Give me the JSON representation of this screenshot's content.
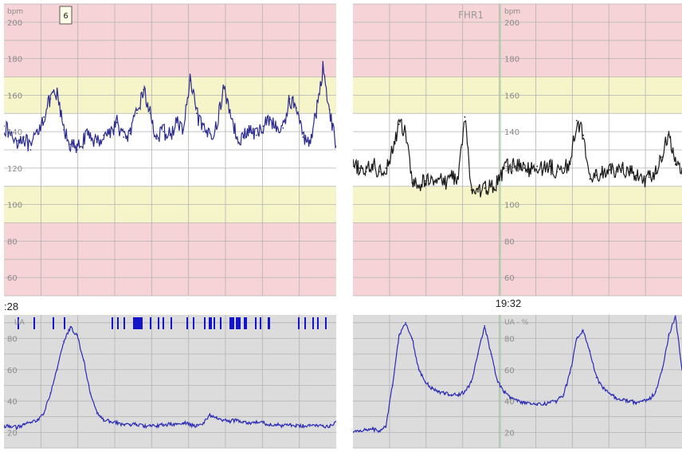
{
  "colors": {
    "red_zone": "#f6d3d6",
    "yellow_zone": "#f6f5c9",
    "white_zone": "#ffffff",
    "ua_background": "#dcdcdc",
    "grid": "#b3b3b3",
    "left_trace": "#2b2b8f",
    "right_trace": "#1a1a1a",
    "ua_trace": "#2b2bb5",
    "event_marks": "#1414c8"
  },
  "marker_box_label": "6",
  "chart_data": [
    {
      "type": "line",
      "panel": "left-fhr",
      "title": "",
      "ylabel": "bpm",
      "yticks": [
        60,
        80,
        100,
        120,
        140,
        160,
        180,
        200
      ],
      "ylim": [
        50,
        210
      ],
      "zones": {
        "red": [
          [
            170,
            210
          ],
          [
            50,
            90
          ]
        ],
        "yellow": [
          [
            150,
            170
          ],
          [
            90,
            110
          ]
        ],
        "white": [
          [
            110,
            150
          ]
        ]
      },
      "x": [
        0,
        2,
        4,
        6,
        8,
        10,
        12,
        14,
        16,
        18,
        20,
        22,
        24,
        26,
        28,
        30,
        32,
        34,
        36,
        38,
        40,
        42,
        44,
        46,
        48,
        50,
        52,
        54,
        56,
        58,
        60,
        62,
        64,
        66,
        68,
        70,
        72,
        74,
        76,
        78,
        80,
        82,
        84,
        86,
        88,
        90,
        92,
        94,
        96,
        98,
        100
      ],
      "series": [
        {
          "values": [
            143,
            138,
            135,
            137,
            130,
            140,
            148,
            158,
            160,
            141,
            133,
            130,
            136,
            138,
            134,
            138,
            140,
            145,
            137,
            139,
            150,
            163,
            150,
            136,
            140,
            138,
            145,
            141,
            168,
            150,
            140,
            139,
            142,
            164,
            152,
            137,
            137,
            141,
            138,
            143,
            148,
            141,
            142,
            158,
            153,
            137,
            135,
            150,
            175,
            152,
            132
          ]
        }
      ]
    },
    {
      "type": "line",
      "panel": "right-fhr",
      "title": "FHR1",
      "ylabel": "bpm",
      "yticks": [
        60,
        80,
        100,
        120,
        140,
        160,
        180,
        200
      ],
      "ylim": [
        50,
        210
      ],
      "zones": {
        "red": [
          [
            170,
            210
          ],
          [
            50,
            90
          ]
        ],
        "yellow": [
          [
            150,
            170
          ],
          [
            90,
            110
          ]
        ],
        "white": [
          [
            110,
            150
          ]
        ]
      },
      "x": [
        0,
        2,
        4,
        6,
        8,
        10,
        12,
        14,
        16,
        18,
        20,
        22,
        24,
        26,
        28,
        30,
        32,
        34,
        36,
        38,
        40,
        42,
        44,
        46,
        48,
        50,
        52,
        54,
        56,
        58,
        60,
        62,
        64,
        66,
        68,
        70,
        72,
        74,
        76,
        78,
        80,
        82,
        84,
        86,
        88,
        90,
        92,
        94,
        96,
        98,
        100
      ],
      "series": [
        {
          "values": [
            121,
            120,
            118,
            122,
            118,
            120,
            130,
            144,
            140,
            112,
            110,
            113,
            115,
            114,
            112,
            116,
            114,
            148,
            108,
            107,
            109,
            110,
            112,
            120,
            121,
            122,
            120,
            119,
            121,
            120,
            121,
            118,
            120,
            122,
            146,
            138,
            114,
            116,
            117,
            119,
            118,
            120,
            118,
            116,
            113,
            115,
            117,
            126,
            140,
            122,
            120
          ]
        }
      ]
    },
    {
      "type": "line",
      "panel": "left-ua",
      "title": "",
      "ylabel": "UA",
      "yticks": [
        20,
        40,
        60,
        80
      ],
      "ylim": [
        10,
        95
      ],
      "time_label": ":28",
      "x": [
        0,
        2,
        4,
        6,
        8,
        10,
        12,
        14,
        16,
        18,
        20,
        22,
        24,
        26,
        28,
        30,
        32,
        34,
        36,
        38,
        40,
        42,
        44,
        46,
        48,
        50,
        52,
        54,
        56,
        58,
        60,
        62,
        64,
        66,
        68,
        70,
        72,
        74,
        76,
        78,
        80,
        82,
        84,
        86,
        88,
        90,
        92,
        94,
        96,
        98,
        100
      ],
      "series": [
        {
          "values": [
            24,
            24,
            23,
            25,
            26,
            28,
            32,
            45,
            60,
            78,
            87,
            82,
            66,
            45,
            32,
            28,
            27,
            26,
            25,
            25,
            25,
            24,
            24,
            24,
            25,
            25,
            25,
            26,
            25,
            24,
            26,
            31,
            29,
            28,
            27,
            28,
            27,
            26,
            27,
            26,
            25,
            25,
            24,
            25,
            24,
            24,
            24,
            25,
            24,
            24,
            27
          ]
        }
      ]
    },
    {
      "type": "line",
      "panel": "right-ua",
      "title": "",
      "ylabel": "UA - %",
      "yticks": [
        20,
        40,
        60,
        80
      ],
      "ylim": [
        10,
        95
      ],
      "time_label": "19:32",
      "x": [
        0,
        2,
        4,
        6,
        8,
        10,
        12,
        14,
        16,
        18,
        20,
        22,
        24,
        26,
        28,
        30,
        32,
        34,
        36,
        38,
        40,
        42,
        44,
        46,
        48,
        50,
        52,
        54,
        56,
        58,
        60,
        62,
        64,
        66,
        68,
        70,
        72,
        74,
        76,
        78,
        80,
        82,
        84,
        86,
        88,
        90,
        92,
        94,
        96,
        98,
        100
      ],
      "series": [
        {
          "values": [
            20,
            21,
            22,
            22,
            21,
            24,
            50,
            82,
            90,
            80,
            60,
            52,
            48,
            46,
            45,
            44,
            44,
            46,
            52,
            70,
            88,
            70,
            52,
            46,
            42,
            40,
            39,
            38,
            38,
            38,
            39,
            40,
            44,
            58,
            80,
            85,
            72,
            55,
            48,
            45,
            42,
            41,
            40,
            39,
            40,
            41,
            46,
            60,
            82,
            94,
            60
          ]
        }
      ]
    }
  ]
}
